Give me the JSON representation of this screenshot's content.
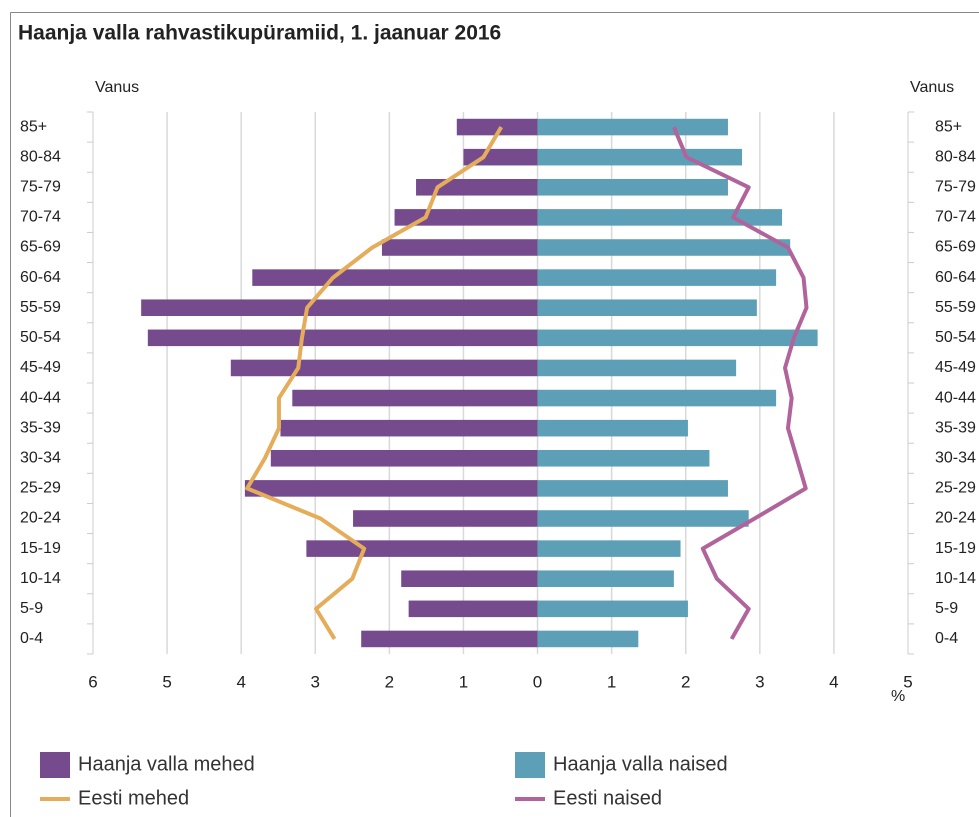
{
  "chart_data": {
    "type": "pyramid",
    "title": "Haanja valla rahvastikupüramiid, 1. jaanuar 2016",
    "y_label": "Vanus",
    "x_label": "%",
    "categories": [
      "0-4",
      "5-9",
      "10-14",
      "15-19",
      "20-24",
      "25-29",
      "30-34",
      "35-39",
      "40-44",
      "45-49",
      "50-54",
      "55-59",
      "60-64",
      "65-69",
      "70-74",
      "75-79",
      "80-84",
      "85+"
    ],
    "series": [
      {
        "name": "Haanja valla mehed",
        "color": "#764b8e",
        "kind": "bar",
        "side": "left",
        "values": [
          2.38,
          1.74,
          1.84,
          3.12,
          2.49,
          3.95,
          3.6,
          3.47,
          3.31,
          4.14,
          5.26,
          5.35,
          3.85,
          2.1,
          1.93,
          1.64,
          1.0,
          1.09
        ]
      },
      {
        "name": "Haanja valla naised",
        "color": "#5e9fb8",
        "kind": "bar",
        "side": "right",
        "values": [
          1.36,
          2.03,
          1.84,
          1.93,
          2.85,
          2.57,
          2.32,
          2.03,
          3.22,
          2.68,
          3.78,
          2.96,
          3.22,
          3.41,
          3.3,
          2.57,
          2.76,
          2.57
        ]
      },
      {
        "name": "Eesti mehed",
        "color": "#e5ad5a",
        "kind": "line",
        "side": "left",
        "values": [
          2.74,
          2.99,
          2.5,
          2.34,
          2.93,
          3.92,
          3.68,
          3.49,
          3.49,
          3.23,
          3.18,
          3.11,
          2.76,
          2.23,
          1.51,
          1.35,
          0.73,
          0.49
        ]
      },
      {
        "name": "Eesti naised",
        "color": "#b0649b",
        "kind": "line",
        "side": "right",
        "values": [
          2.62,
          2.85,
          2.42,
          2.23,
          2.93,
          3.62,
          3.5,
          3.38,
          3.43,
          3.34,
          3.46,
          3.63,
          3.59,
          3.38,
          2.64,
          2.85,
          2.01,
          1.84
        ]
      }
    ],
    "xlim": [
      -6,
      5
    ],
    "xticks": [
      {
        "value": -6,
        "label": "6"
      },
      {
        "value": -5,
        "label": "5"
      },
      {
        "value": -4,
        "label": "4"
      },
      {
        "value": -3,
        "label": "3"
      },
      {
        "value": -2,
        "label": "2"
      },
      {
        "value": -1,
        "label": "1"
      },
      0,
      1,
      2,
      3,
      4,
      5
    ],
    "grid": true
  }
}
